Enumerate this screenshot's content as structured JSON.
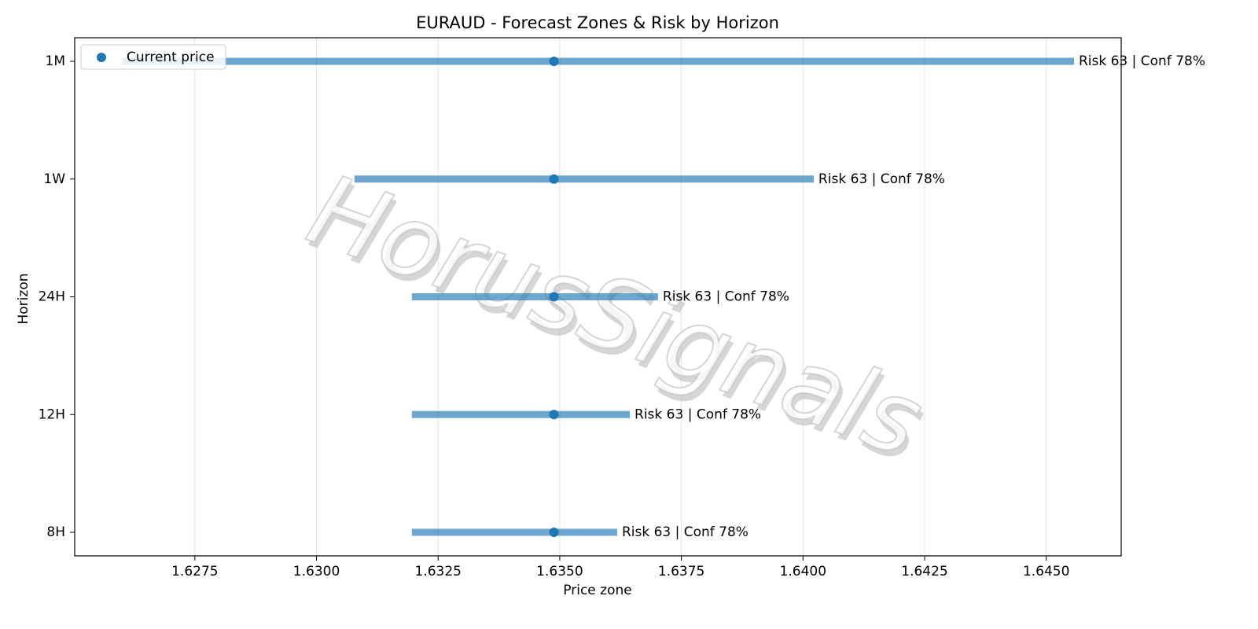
{
  "chart_data": {
    "type": "range",
    "title": "EURAUD - Forecast Zones & Risk by Horizon",
    "xlabel": "Price zone",
    "ylabel": "Horizon",
    "watermark": "HorusSignals",
    "categories": [
      "1M",
      "1W",
      "24H",
      "12H",
      "8H"
    ],
    "ranges": {
      "color": "#1f77b4",
      "low": [
        1.626,
        1.63078,
        1.63196,
        1.63196,
        1.63196
      ],
      "high": [
        1.64557,
        1.64022,
        1.63702,
        1.63644,
        1.63618
      ]
    },
    "series": [
      {
        "name": "Current price",
        "color": "#1f77b4",
        "values": [
          1.63488,
          1.63488,
          1.63488,
          1.63488,
          1.63488
        ]
      }
    ],
    "annotations": [
      "Risk 63 | Conf 78%",
      "Risk 63 | Conf 78%",
      "Risk 63 | Conf 78%",
      "Risk 63 | Conf 78%",
      "Risk 63 | Conf 78%"
    ],
    "xlim": [
      1.62503,
      1.64654
    ],
    "xticks": [
      1.6275,
      {
        "value": 1.63,
        "label": "1.6300"
      },
      1.6325,
      {
        "value": 1.635,
        "label": "1.6350"
      },
      1.6375,
      {
        "value": 1.64,
        "label": "1.6400"
      },
      1.6425,
      {
        "value": 1.645,
        "label": "1.6450"
      }
    ],
    "grid": true,
    "legend": "upper left"
  }
}
